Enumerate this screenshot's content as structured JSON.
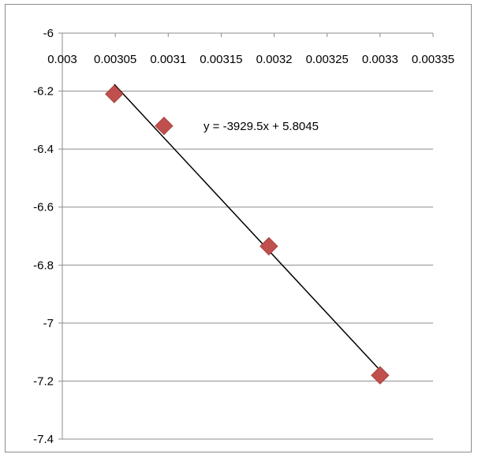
{
  "chart_data": {
    "type": "scatter",
    "title": "",
    "xlabel": "",
    "ylabel": "",
    "x_ticks": [
      "0.003",
      "0.00305",
      "0.0031",
      "0.00315",
      "0.0032",
      "0.00325",
      "0.0033",
      "0.00335"
    ],
    "x_tick_values": [
      0.003,
      0.00305,
      0.0031,
      0.00315,
      0.0032,
      0.00325,
      0.0033,
      0.00335
    ],
    "y_ticks": [
      "-6",
      "-6.2",
      "-6.4",
      "-6.6",
      "-6.8",
      "-7",
      "-7.2",
      "-7.4"
    ],
    "y_tick_values": [
      -6,
      -6.2,
      -6.4,
      -6.6,
      -6.8,
      -7,
      -7.2,
      -7.4
    ],
    "xlim": [
      0.003,
      0.00335
    ],
    "ylim": [
      -7.4,
      -6
    ],
    "x_axis_position": "top",
    "grid": "horizontal",
    "legend": "none",
    "series": [
      {
        "x": [
          0.003049,
          0.003096,
          0.003195,
          0.0033
        ],
        "y": [
          -6.21,
          -6.32,
          -6.735,
          -7.18
        ],
        "marker": "diamond",
        "color": "#c0504d"
      }
    ],
    "trendline": {
      "slope": -3929.5,
      "intercept": 5.8045,
      "x_range": [
        0.003049,
        0.0033
      ],
      "color": "#000000",
      "equation_label": "y = -3929.5x + 5.8045"
    }
  }
}
